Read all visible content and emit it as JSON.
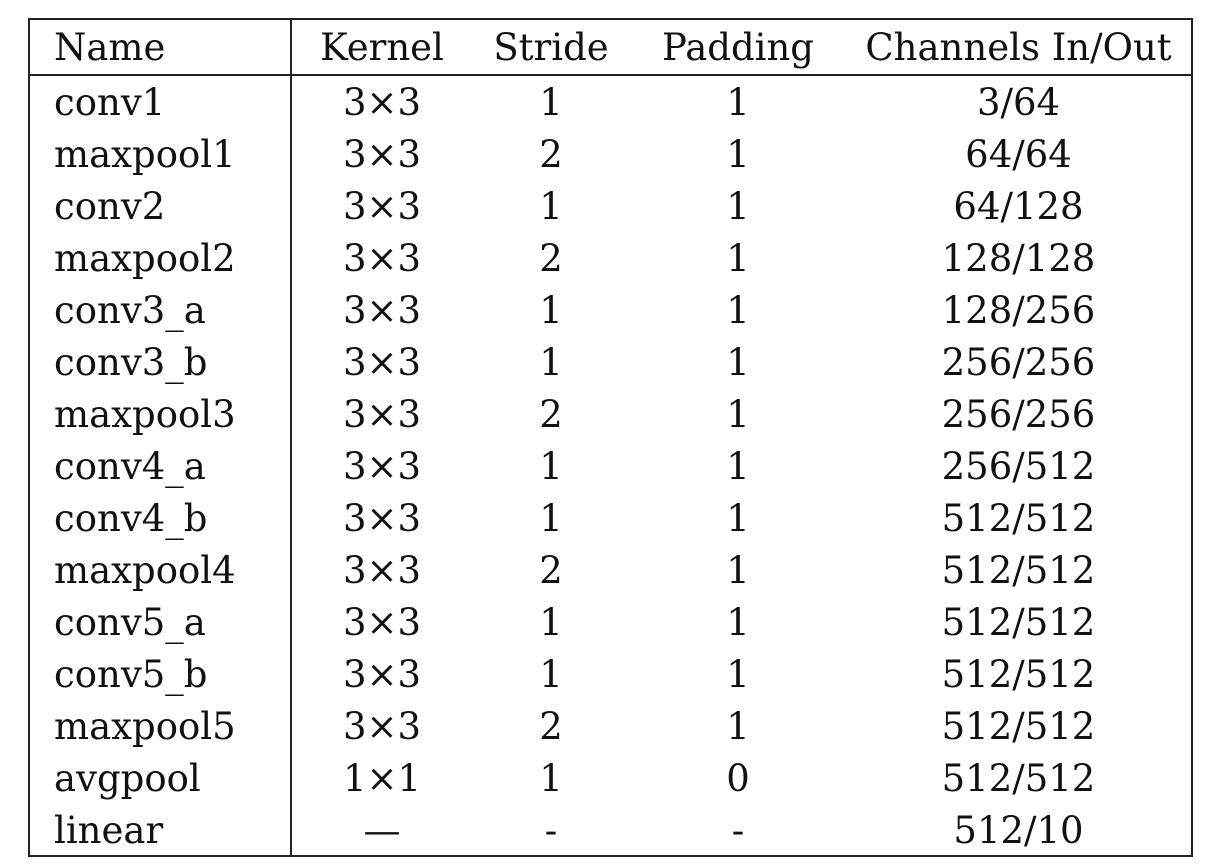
{
  "table": {
    "headers": {
      "name": "Name",
      "kernel": "Kernel",
      "stride": "Stride",
      "padding": "Padding",
      "channels": "Channels In/Out"
    },
    "rows": [
      {
        "name": "conv1",
        "kernel": "3×3",
        "stride": "1",
        "padding": "1",
        "channels": "3/64"
      },
      {
        "name": "maxpool1",
        "kernel": "3×3",
        "stride": "2",
        "padding": "1",
        "channels": "64/64"
      },
      {
        "name": "conv2",
        "kernel": "3×3",
        "stride": "1",
        "padding": "1",
        "channels": "64/128"
      },
      {
        "name": "maxpool2",
        "kernel": "3×3",
        "stride": "2",
        "padding": "1",
        "channels": "128/128"
      },
      {
        "name": "conv3_a",
        "kernel": "3×3",
        "stride": "1",
        "padding": "1",
        "channels": "128/256"
      },
      {
        "name": "conv3_b",
        "kernel": "3×3",
        "stride": "1",
        "padding": "1",
        "channels": "256/256"
      },
      {
        "name": "maxpool3",
        "kernel": "3×3",
        "stride": "2",
        "padding": "1",
        "channels": "256/256"
      },
      {
        "name": "conv4_a",
        "kernel": "3×3",
        "stride": "1",
        "padding": "1",
        "channels": "256/512"
      },
      {
        "name": "conv4_b",
        "kernel": "3×3",
        "stride": "1",
        "padding": "1",
        "channels": "512/512"
      },
      {
        "name": "maxpool4",
        "kernel": "3×3",
        "stride": "2",
        "padding": "1",
        "channels": "512/512"
      },
      {
        "name": "conv5_a",
        "kernel": "3×3",
        "stride": "1",
        "padding": "1",
        "channels": "512/512"
      },
      {
        "name": "conv5_b",
        "kernel": "3×3",
        "stride": "1",
        "padding": "1",
        "channels": "512/512"
      },
      {
        "name": "maxpool5",
        "kernel": "3×3",
        "stride": "2",
        "padding": "1",
        "channels": "512/512"
      },
      {
        "name": "avgpool",
        "kernel": "1×1",
        "stride": "1",
        "padding": "0",
        "channels": "512/512"
      },
      {
        "name": "linear",
        "kernel": "—",
        "stride": "-",
        "padding": "-",
        "channels": "512/10"
      }
    ]
  }
}
